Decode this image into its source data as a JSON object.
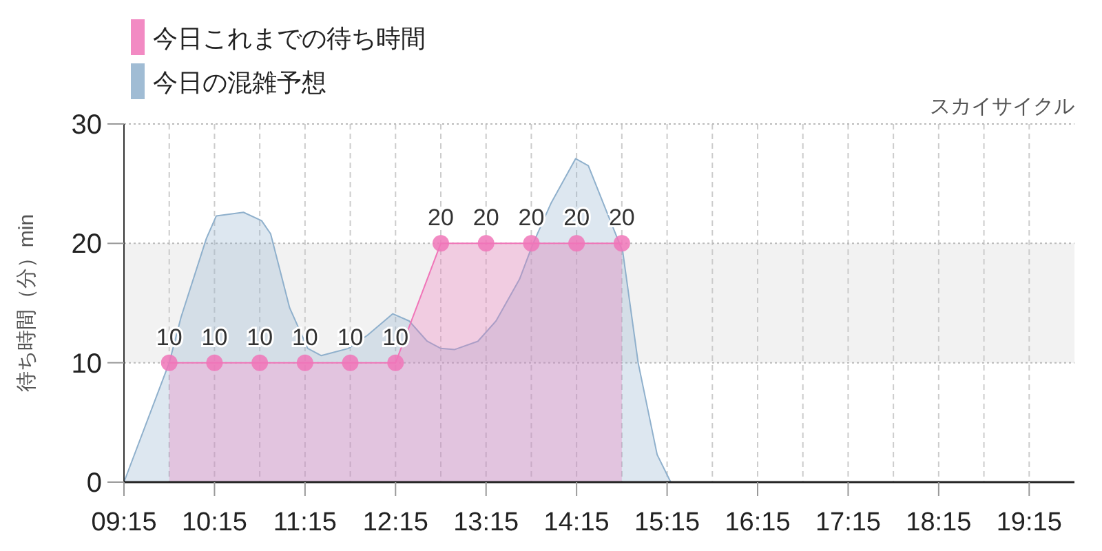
{
  "chart_data": {
    "type": "area",
    "subtitle": "スカイサイクル",
    "ylabel": "待ち時間（分）min",
    "xlim": [
      9.25,
      19.75
    ],
    "ylim": [
      0,
      30
    ],
    "yticks": [
      0,
      10,
      20,
      30
    ],
    "xticks": [
      {
        "value": 9.25,
        "label": "09:15"
      },
      {
        "value": 9.75,
        "label": null
      },
      {
        "value": 10.25,
        "label": "10:15"
      },
      {
        "value": 10.75,
        "label": null
      },
      {
        "value": 11.25,
        "label": "11:15"
      },
      {
        "value": 11.75,
        "label": null
      },
      {
        "value": 12.25,
        "label": "12:15"
      },
      {
        "value": 12.75,
        "label": null
      },
      {
        "value": 13.25,
        "label": "13:15"
      },
      {
        "value": 13.75,
        "label": null
      },
      {
        "value": 14.25,
        "label": "14:15"
      },
      {
        "value": 14.75,
        "label": null
      },
      {
        "value": 15.25,
        "label": "15:15"
      },
      {
        "value": 15.75,
        "label": null
      },
      {
        "value": 16.25,
        "label": "16:15"
      },
      {
        "value": 16.75,
        "label": null
      },
      {
        "value": 17.25,
        "label": "17:15"
      },
      {
        "value": 17.75,
        "label": null
      },
      {
        "value": 18.25,
        "label": "18:15"
      },
      {
        "value": 18.75,
        "label": null
      },
      {
        "value": 19.25,
        "label": "19:15"
      }
    ],
    "grid": true,
    "legend": "top left",
    "bands": [
      {
        "axis": "y",
        "from": 10,
        "to": 20,
        "color": "#f2f2f2"
      }
    ],
    "series": [
      {
        "name": "今日これまでの待ち時間",
        "color": "#f075b8",
        "marker": "circle",
        "x": [
          9.75,
          10.25,
          10.75,
          11.25,
          11.75,
          12.25,
          12.75,
          13.25,
          13.75,
          14.25,
          14.75
        ],
        "values": [
          10,
          10,
          10,
          10,
          10,
          10,
          20,
          20,
          20,
          20,
          20
        ],
        "value_labels": [
          "10",
          "10",
          "10",
          "10",
          "10",
          "10",
          "20",
          "20",
          "20",
          "20",
          "20"
        ]
      },
      {
        "name": "今日の混雑予想",
        "color": "#8fb0cc",
        "marker": "none",
        "x": [
          9.25,
          9.75,
          9.88,
          10.16,
          10.27,
          10.57,
          10.77,
          10.87,
          11.08,
          11.28,
          11.43,
          11.73,
          11.94,
          12.22,
          12.4,
          12.6,
          12.75,
          12.9,
          13.16,
          13.36,
          13.62,
          13.77,
          13.97,
          14.24,
          14.38,
          14.58,
          14.76,
          14.93,
          15.14,
          15.29,
          15.45,
          19.75
        ],
        "values": [
          0,
          10,
          13.8,
          20.4,
          22.3,
          22.6,
          21.9,
          20.8,
          14.6,
          11.2,
          10.6,
          11.2,
          12.3,
          14.1,
          13.5,
          11.8,
          11.2,
          11.1,
          11.8,
          13.5,
          17,
          20,
          23.4,
          27.1,
          26.5,
          22.7,
          19.3,
          10,
          2.3,
          0,
          0,
          0
        ]
      }
    ]
  }
}
